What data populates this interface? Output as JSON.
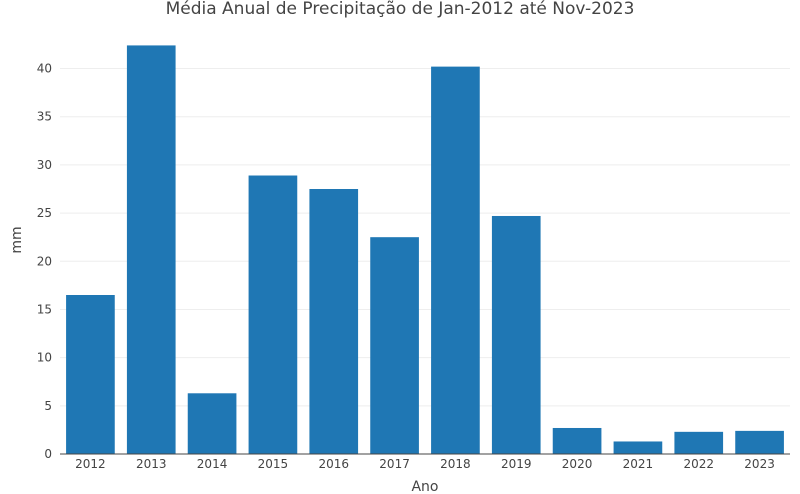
{
  "chart_data": {
    "type": "bar",
    "title": "Média Anual de Precipitação de Jan-2012 até Nov-2023",
    "xlabel": "Ano",
    "ylabel": "mm",
    "categories": [
      "2012",
      "2013",
      "2014",
      "2015",
      "2016",
      "2017",
      "2018",
      "2019",
      "2020",
      "2021",
      "2022",
      "2023"
    ],
    "values": [
      16.5,
      42.4,
      6.3,
      28.9,
      27.5,
      22.5,
      40.2,
      24.7,
      2.7,
      1.3,
      2.3,
      2.4
    ],
    "ylim": [
      0,
      44
    ],
    "yticks": [
      0,
      5,
      10,
      15,
      20,
      25,
      30,
      35,
      40
    ],
    "grid": true,
    "bar_color": "#1f77b4"
  }
}
